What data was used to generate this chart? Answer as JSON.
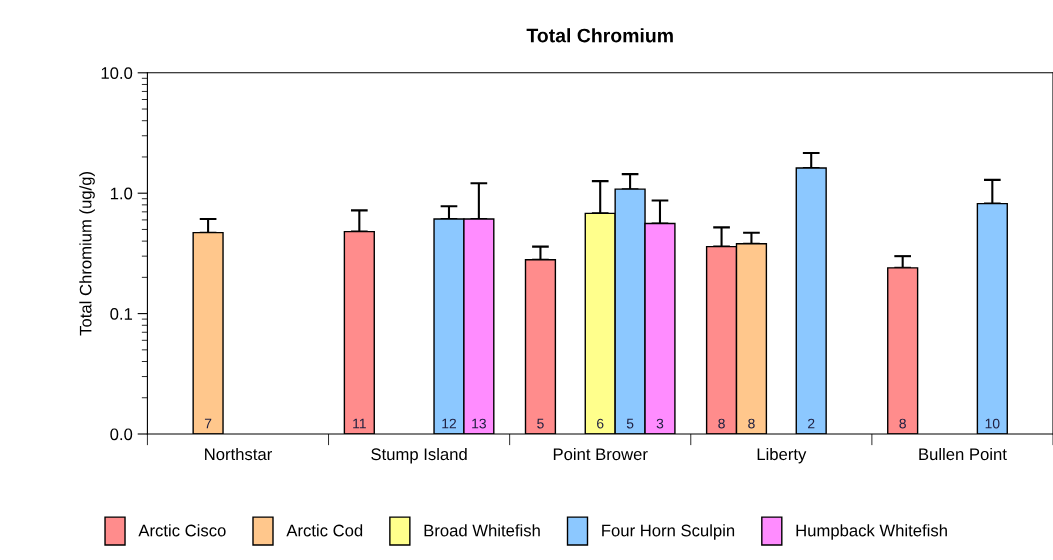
{
  "chart_data": {
    "type": "bar",
    "title": "Total Chromium",
    "ylabel": "Total Chromium (ug/g)",
    "categories": [
      "Northstar",
      "Stump Island",
      "Point Brower",
      "Liberty",
      "Bullen Point"
    ],
    "log": "y",
    "ylim": [
      0.01,
      10
    ],
    "yticks": [
      {
        "value": 0.01,
        "label": "0.0"
      },
      {
        "value": 0.1,
        "label": "0.1"
      },
      {
        "value": 1,
        "label": "1.0"
      },
      {
        "value": 10,
        "label": "10.0"
      }
    ],
    "grid": false,
    "legend": "bottom",
    "series": [
      {
        "name": "Arctic Cisco",
        "color": "#ff8c8c",
        "values": [
          null,
          0.48,
          0.28,
          0.36,
          0.24
        ],
        "errors": [
          null,
          [
            0.48,
            0.72
          ],
          [
            0.28,
            0.36
          ],
          [
            0.36,
            0.52
          ],
          [
            0.24,
            0.3
          ]
        ]
      },
      {
        "name": "Arctic Cod",
        "color": "#ffc78c",
        "values": [
          0.47,
          null,
          null,
          0.38,
          null
        ],
        "errors": [
          [
            0.47,
            0.61
          ],
          null,
          null,
          [
            0.38,
            0.47
          ],
          null
        ]
      },
      {
        "name": "Broad Whitefish",
        "color": "#ffff8c",
        "values": [
          null,
          null,
          0.68,
          null,
          null
        ],
        "errors": [
          null,
          null,
          [
            0.68,
            1.26
          ],
          null,
          null
        ]
      },
      {
        "name": "Four Horn Sculpin",
        "color": "#8cc8ff",
        "values": [
          null,
          0.61,
          1.08,
          1.62,
          0.82
        ],
        "errors": [
          null,
          [
            0.61,
            0.78
          ],
          [
            1.08,
            1.44
          ],
          [
            1.62,
            2.16
          ],
          [
            0.82,
            1.29
          ]
        ]
      },
      {
        "name": "Humpback Whitefish",
        "color": "#ff8cff",
        "values": [
          null,
          0.61,
          0.56,
          null,
          null
        ],
        "errors": [
          null,
          [
            0.61,
            1.21
          ],
          [
            0.56,
            0.87
          ],
          null,
          null
        ]
      }
    ],
    "annotations": [
      "7",
      "11",
      "12",
      "13",
      "5",
      "6",
      "5",
      "3",
      "8",
      "8",
      "2",
      "8",
      "10"
    ]
  }
}
